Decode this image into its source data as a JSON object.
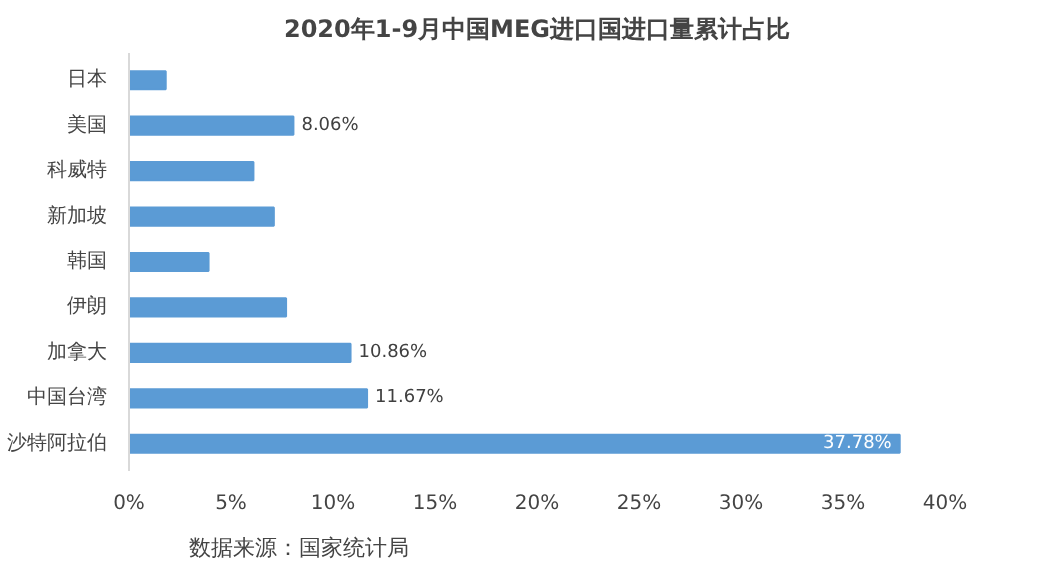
{
  "chart_data": {
    "type": "bar",
    "orientation": "horizontal",
    "title": "2020年1-9月中国MEG进口国进口量累计占比",
    "categories": [
      "日本",
      "美国",
      "科威特",
      "新加坡",
      "韩国",
      "伊朗",
      "加拿大",
      "中国台湾",
      "沙特阿拉伯"
    ],
    "values": [
      1.8,
      8.06,
      6.1,
      7.1,
      3.9,
      7.7,
      10.86,
      11.67,
      37.78
    ],
    "value_labels": [
      null,
      "8.06%",
      null,
      null,
      null,
      null,
      "10.86%",
      "11.67%",
      "37.78%"
    ],
    "color": "#5b9bd5",
    "xlim": [
      0,
      40
    ],
    "xticks": [
      {
        "value": 0,
        "label": "0%"
      },
      {
        "value": 5,
        "label": "5%"
      },
      {
        "value": 10,
        "label": "10%"
      },
      {
        "value": 15,
        "label": "15%"
      },
      {
        "value": 20,
        "label": "20%"
      },
      {
        "value": 25,
        "label": "25%"
      },
      {
        "value": 30,
        "label": "30%"
      },
      {
        "value": 35,
        "label": "35%"
      },
      {
        "value": 40,
        "label": "40%"
      }
    ],
    "grid": false,
    "annotations": [
      "数据来源：国家统计局"
    ]
  }
}
